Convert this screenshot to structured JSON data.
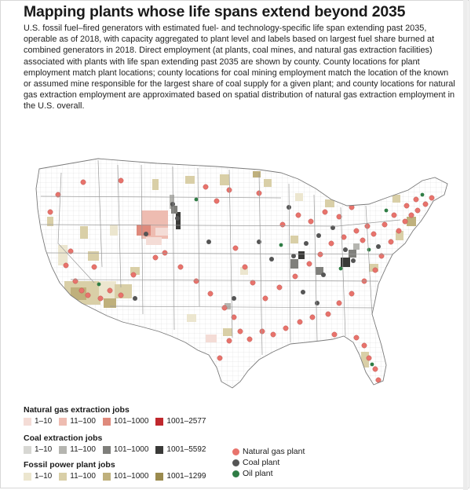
{
  "title": "Mapping plants whose life spans extend beyond 2035",
  "description": "U.S. fossil fuel–fired generators with estimated fuel- and technology-specific life span extending past 2035, operable as of 2018, with capacity aggregated to plant level and labels based on largest fuel share burned at combined generators in 2018. Direct employment (at plants, coal mines, and natural gas extraction facilities) associated with plants with life span extending past 2035 are shown by county. County locations for plant employment match plant locations; county locations for coal mining employment match the location of the known or assumed mine responsible for the largest share of coal supply for a given plant; and county locations for natural gas extraction employment are approximated based on spatial distribution of natural gas extraction employment in the U.S. overall.",
  "legend": {
    "natural_gas_jobs": {
      "title": "Natural gas extraction jobs",
      "bins": [
        {
          "label": "1–10",
          "color": "#f4dcd6"
        },
        {
          "label": "11–100",
          "color": "#eebcb1"
        },
        {
          "label": "101–1000",
          "color": "#df8a7c"
        },
        {
          "label": "1001–2577",
          "color": "#c0282d"
        }
      ]
    },
    "coal_jobs": {
      "title": "Coal extraction jobs",
      "bins": [
        {
          "label": "1–10",
          "color": "#d7d7d3"
        },
        {
          "label": "11–100",
          "color": "#b5b5b0"
        },
        {
          "label": "101–1000",
          "color": "#7f7f7b"
        },
        {
          "label": "1001–5592",
          "color": "#3a3a38"
        }
      ]
    },
    "power_plant_jobs": {
      "title": "Fossil power plant jobs",
      "bins": [
        {
          "label": "1–10",
          "color": "#ece6cf"
        },
        {
          "label": "11–100",
          "color": "#d9cfa7"
        },
        {
          "label": "101–1000",
          "color": "#bfb07c"
        },
        {
          "label": "1001–1299",
          "color": "#9a8a4e"
        }
      ]
    },
    "plants": [
      {
        "label": "Natural gas plant",
        "color": "#e8736c"
      },
      {
        "label": "Coal plant",
        "color": "#555555"
      },
      {
        "label": "Oil plant",
        "color": "#2f7d45"
      }
    ]
  },
  "colors": {
    "county_border": "#c9c9c9",
    "state_border": "#9a9a9a",
    "land": "#ffffff"
  }
}
